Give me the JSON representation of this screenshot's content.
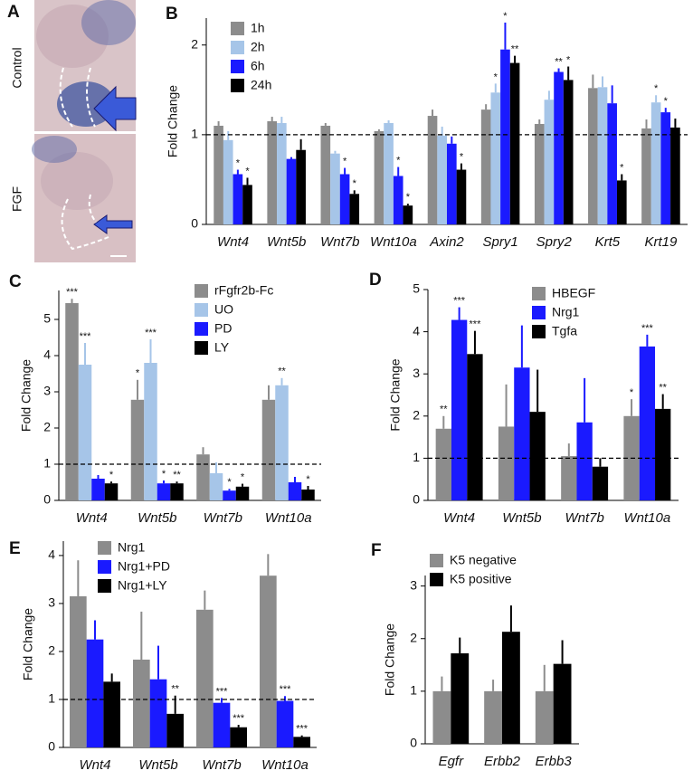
{
  "panel_a": {
    "label": "A",
    "images": [
      "Control",
      "FGF"
    ]
  },
  "chart_data": [
    {
      "type": "bar",
      "label": "B",
      "y_label": "Fold Change",
      "categories": [
        "Wnt4",
        "Wnt5b",
        "Wnt7b",
        "Wnt10a",
        "Axin2",
        "Spry1",
        "Spry2",
        "Krt5",
        "Krt19"
      ],
      "ylim": [
        0,
        2.3
      ],
      "yticks": [
        0,
        1,
        2
      ],
      "hline": 1,
      "series": [
        {
          "name": "1h",
          "color": "#8c8c8c",
          "values": [
            1.1,
            1.15,
            1.1,
            1.04,
            1.21,
            1.28,
            1.12,
            1.52,
            1.07
          ],
          "errors": [
            0.05,
            0.05,
            0.03,
            0.02,
            0.07,
            0.06,
            0.05,
            0.15,
            0.1
          ],
          "stars": [
            null,
            null,
            null,
            null,
            null,
            null,
            null,
            null,
            null
          ]
        },
        {
          "name": "2h",
          "color": "#a6c5e8",
          "values": [
            0.94,
            1.13,
            0.79,
            1.13,
            0.99,
            1.47,
            1.39,
            1.53,
            1.36
          ],
          "errors": [
            0.1,
            0.07,
            0.03,
            0.03,
            0.1,
            0.1,
            0.1,
            0.12,
            0.08
          ],
          "stars": [
            null,
            null,
            null,
            null,
            null,
            "*",
            null,
            null,
            "*"
          ]
        },
        {
          "name": "6h",
          "color": "#1a1aff",
          "values": [
            0.56,
            0.73,
            0.56,
            0.54,
            0.9,
            1.95,
            1.7,
            1.35,
            1.25
          ],
          "errors": [
            0.05,
            0.02,
            0.07,
            0.1,
            0.08,
            0.3,
            0.04,
            0.2,
            0.05
          ],
          "stars": [
            "*",
            null,
            "*",
            "*",
            null,
            "*",
            "**",
            null,
            "*"
          ]
        },
        {
          "name": "24h",
          "color": "#000000",
          "values": [
            0.44,
            0.83,
            0.34,
            0.21,
            0.61,
            1.8,
            1.61,
            0.49,
            1.08
          ],
          "errors": [
            0.08,
            0.12,
            0.04,
            0.02,
            0.07,
            0.08,
            0.15,
            0.07,
            0.1
          ],
          "stars": [
            "*",
            null,
            "*",
            "*",
            "*",
            "**",
            "*",
            "*",
            null
          ]
        }
      ]
    },
    {
      "type": "bar",
      "label": "C",
      "y_label": "Fold Change",
      "categories": [
        "Wnt4",
        "Wnt5b",
        "Wnt7b",
        "Wnt10a"
      ],
      "ylim": [
        0,
        5.8
      ],
      "yticks": [
        0,
        1,
        2,
        3,
        4,
        5
      ],
      "hline": 1,
      "series": [
        {
          "name": "rFgfr2b-Fc",
          "color": "#8c8c8c",
          "values": [
            5.45,
            2.78,
            1.27,
            2.78
          ],
          "errors": [
            0.12,
            0.55,
            0.2,
            0.4
          ],
          "stars": [
            "***",
            "*",
            null,
            null
          ]
        },
        {
          "name": "UO",
          "color": "#a6c5e8",
          "values": [
            3.75,
            3.8,
            0.75,
            3.18
          ],
          "errors": [
            0.6,
            0.65,
            0.3,
            0.2
          ],
          "stars": [
            "***",
            "***",
            null,
            "**"
          ]
        },
        {
          "name": "PD",
          "color": "#1a1aff",
          "values": [
            0.6,
            0.47,
            0.27,
            0.5
          ],
          "errors": [
            0.1,
            0.08,
            0.05,
            0.15
          ],
          "stars": [
            null,
            "*",
            "*",
            null
          ]
        },
        {
          "name": "LY",
          "color": "#000000",
          "values": [
            0.47,
            0.47,
            0.38,
            0.3
          ],
          "errors": [
            0.05,
            0.05,
            0.08,
            0.1
          ],
          "stars": [
            "*",
            "**",
            "*",
            "*"
          ]
        }
      ]
    },
    {
      "type": "bar",
      "label": "D",
      "y_label": "Fold Change",
      "categories": [
        "Wnt4",
        "Wnt5b",
        "Wnt7b",
        "Wnt10a"
      ],
      "ylim": [
        0,
        5
      ],
      "yticks": [
        0,
        1,
        2,
        3,
        4,
        5
      ],
      "hline": 1,
      "series": [
        {
          "name": "HBEGF",
          "color": "#8c8c8c",
          "values": [
            1.7,
            1.75,
            1.05,
            2.0
          ],
          "errors": [
            0.3,
            1.0,
            0.3,
            0.4
          ],
          "stars": [
            "**",
            null,
            null,
            "*"
          ]
        },
        {
          "name": "Nrg1",
          "color": "#1a1aff",
          "values": [
            4.28,
            3.15,
            1.85,
            3.65
          ],
          "errors": [
            0.3,
            1.0,
            1.05,
            0.28
          ],
          "stars": [
            "***",
            null,
            null,
            "***"
          ]
        },
        {
          "name": "Tgfa",
          "color": "#000000",
          "values": [
            3.47,
            2.1,
            0.8,
            2.17
          ],
          "errors": [
            0.55,
            1.0,
            0.2,
            0.35
          ],
          "stars": [
            "***",
            null,
            null,
            "**"
          ]
        }
      ]
    },
    {
      "type": "bar",
      "label": "E",
      "y_label": "Fold Change",
      "categories": [
        "Wnt4",
        "Wnt5b",
        "Wnt7b",
        "Wnt10a"
      ],
      "ylim": [
        0,
        4.3
      ],
      "yticks": [
        0,
        1,
        2,
        3,
        4
      ],
      "hline": 1,
      "series": [
        {
          "name": "Nrg1",
          "color": "#8c8c8c",
          "values": [
            3.15,
            1.83,
            2.87,
            3.58
          ],
          "errors": [
            0.75,
            1.0,
            0.4,
            0.45
          ],
          "stars": [
            null,
            null,
            null,
            null
          ]
        },
        {
          "name": "Nrg1+PD",
          "color": "#1a1aff",
          "values": [
            2.25,
            1.42,
            0.93,
            0.97
          ],
          "errors": [
            0.4,
            0.7,
            0.1,
            0.1
          ],
          "stars": [
            null,
            null,
            "***",
            "***"
          ]
        },
        {
          "name": "Nrg1+LY",
          "color": "#000000",
          "values": [
            1.37,
            0.7,
            0.42,
            0.22
          ],
          "errors": [
            0.17,
            0.38,
            0.05,
            0.03
          ],
          "stars": [
            null,
            "**",
            "***",
            "***"
          ]
        }
      ]
    },
    {
      "type": "bar",
      "label": "F",
      "y_label": "Fold Change",
      "categories": [
        "Egfr",
        "Erbb2",
        "Erbb3"
      ],
      "ylim": [
        0,
        3.2
      ],
      "yticks": [
        0,
        1,
        2,
        3
      ],
      "series": [
        {
          "name": "K5 negative",
          "color": "#8c8c8c",
          "values": [
            1,
            1,
            1
          ],
          "errors": [
            0.28,
            0.22,
            0.5
          ],
          "stars": [
            null,
            null,
            null
          ]
        },
        {
          "name": "K5 positive",
          "color": "#000000",
          "values": [
            1.72,
            2.13,
            1.52
          ],
          "errors": [
            0.3,
            0.5,
            0.45
          ],
          "stars": [
            null,
            null,
            null
          ]
        }
      ]
    }
  ]
}
